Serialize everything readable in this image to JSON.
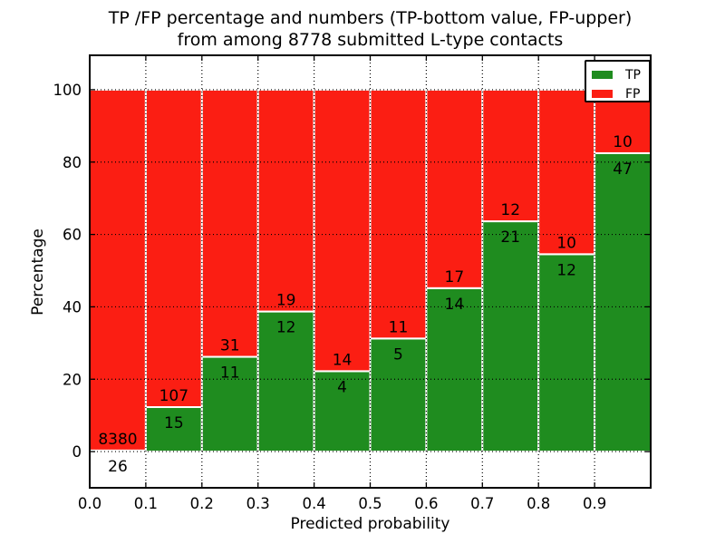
{
  "chart_data": {
    "type": "bar",
    "stacked": true,
    "normalized": "percent",
    "title_line1": "TP /FP percentage and numbers (TP-bottom value, FP-upper)",
    "title_line2": "from among 8778 submitted L-type contacts",
    "xlabel": "Predicted probability",
    "ylabel": "Percentage",
    "total_contacts": 8778,
    "xlim": [
      0.0,
      1.0
    ],
    "ylim": [
      -10,
      109.5
    ],
    "bin_width": 0.1,
    "x_tick_labels": [
      "0.0",
      "0.1",
      "0.2",
      "0.3",
      "0.4",
      "0.5",
      "0.6",
      "0.7",
      "0.8",
      "0.9"
    ],
    "y_ticks": [
      0,
      20,
      40,
      60,
      80,
      100
    ],
    "grid": "dotted",
    "legend_position": "upper right",
    "series": [
      {
        "name": "TP",
        "color": "#1f8c1f",
        "counts": [
          26,
          15,
          11,
          12,
          4,
          5,
          14,
          21,
          12,
          47
        ]
      },
      {
        "name": "FP",
        "color": "#fb1e13",
        "counts": [
          8380,
          107,
          31,
          19,
          14,
          11,
          17,
          12,
          10,
          10
        ]
      }
    ],
    "tp_percent": [
      0.31,
      12.3,
      26.19,
      38.71,
      22.22,
      31.25,
      45.16,
      63.64,
      54.55,
      82.46
    ]
  },
  "colors": {
    "axis": "#000000",
    "background": "#ffffff",
    "bar_edge": "#ffffff"
  }
}
